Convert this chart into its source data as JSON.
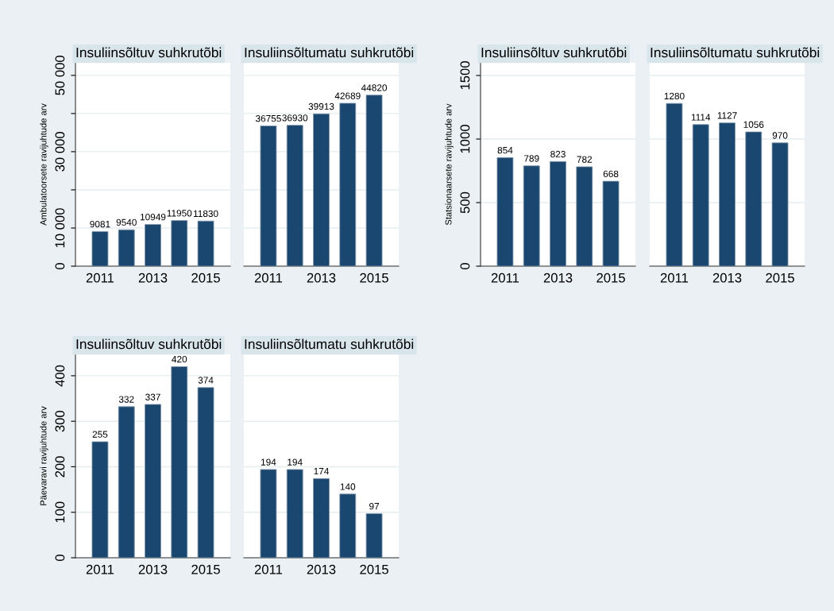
{
  "chart_data": [
    {
      "type": "bar",
      "title": "Insuliinsõltuv suhkrutõbi",
      "ylabel": "Ambulatoorsete ravijuhtude arv",
      "x": [
        2011,
        2012,
        2013,
        2014,
        2015
      ],
      "values": [
        9081,
        9540,
        10949,
        11950,
        11830
      ],
      "color": "#1a476f",
      "data_labels": true,
      "xlim": [
        2010.07,
        2015.93
      ],
      "xticks": [
        2011,
        2013,
        2015
      ],
      "ylim": [
        0,
        53300
      ],
      "yticks": [
        0,
        {
          "value": 10000,
          "label": "10 000"
        },
        {
          "value": 20000,
          "label": null
        },
        {
          "value": 30000,
          "label": "30 000"
        },
        {
          "value": 40000,
          "label": null
        },
        {
          "value": 50000,
          "label": "50 000"
        }
      ],
      "grid": "y"
    },
    {
      "type": "bar",
      "title": "Insuliinsõltumatu suhkrutõbi",
      "x": [
        2011,
        2012,
        2013,
        2014,
        2015
      ],
      "values": [
        36755,
        36930,
        39913,
        42689,
        44820
      ],
      "color": "#1a476f",
      "data_labels": true,
      "xlim": [
        2010.07,
        2015.93
      ],
      "xticks": [
        2011,
        2013,
        2015
      ],
      "ylim": [
        0,
        53300
      ],
      "yticks": [
        {
          "value": 0,
          "label": null
        },
        {
          "value": 10000,
          "label": null
        },
        {
          "value": 20000,
          "label": null
        },
        {
          "value": 30000,
          "label": null
        },
        {
          "value": 40000,
          "label": null
        },
        {
          "value": 50000,
          "label": null
        }
      ],
      "grid": "y",
      "tick_labels": "x"
    },
    {
      "type": "bar",
      "title": "Insuliinsõltuv suhkrutõbi",
      "ylabel": "Statsionaarsete ravijuhtude arv",
      "x": [
        2011,
        2012,
        2013,
        2014,
        2015
      ],
      "values": [
        854,
        789,
        823,
        782,
        668
      ],
      "color": "#1a476f",
      "data_labels": true,
      "xlim": [
        2010.07,
        2015.93
      ],
      "xticks": [
        2011,
        2013,
        2015
      ],
      "ylim": [
        0,
        1600
      ],
      "yticks": [
        0,
        500,
        1000,
        1500
      ],
      "grid": "y"
    },
    {
      "type": "bar",
      "title": "Insuliinsõltumatu suhkrutõbi",
      "x": [
        2011,
        2012,
        2013,
        2014,
        2015
      ],
      "values": [
        1280,
        1114,
        1127,
        1056,
        970
      ],
      "color": "#1a476f",
      "data_labels": true,
      "xlim": [
        2010.07,
        2015.93
      ],
      "xticks": [
        2011,
        2013,
        2015
      ],
      "ylim": [
        0,
        1600
      ],
      "yticks": [
        {
          "value": 0,
          "label": null
        },
        {
          "value": 500,
          "label": null
        },
        {
          "value": 1000,
          "label": null
        },
        {
          "value": 1500,
          "label": null
        }
      ],
      "grid": "y",
      "tick_labels": "x"
    },
    {
      "type": "bar",
      "title": "Insuliinsõltuv suhkrutõbi",
      "ylabel": "Päevaravi ravijuhtude arv",
      "x": [
        2011,
        2012,
        2013,
        2014,
        2015
      ],
      "values": [
        255,
        332,
        337,
        420,
        374
      ],
      "color": "#1a476f",
      "data_labels": true,
      "xlim": [
        2010.07,
        2015.93
      ],
      "xticks": [
        2011,
        2013,
        2015
      ],
      "ylim": [
        0,
        447
      ],
      "yticks": [
        0,
        100,
        200,
        300,
        400
      ],
      "grid": "y"
    },
    {
      "type": "bar",
      "title": "Insuliinsõltumatu suhkrutõbi",
      "x": [
        2011,
        2012,
        2013,
        2014,
        2015
      ],
      "values": [
        194,
        194,
        174,
        140,
        97
      ],
      "color": "#1a476f",
      "data_labels": true,
      "xlim": [
        2010.07,
        2015.93
      ],
      "xticks": [
        2011,
        2013,
        2015
      ],
      "ylim": [
        0,
        447
      ],
      "yticks": [
        {
          "value": 0,
          "label": null
        },
        {
          "value": 100,
          "label": null
        },
        {
          "value": 200,
          "label": null
        },
        {
          "value": 300,
          "label": null
        },
        {
          "value": 400,
          "label": null
        }
      ],
      "grid": "y",
      "tick_labels": "x"
    }
  ]
}
